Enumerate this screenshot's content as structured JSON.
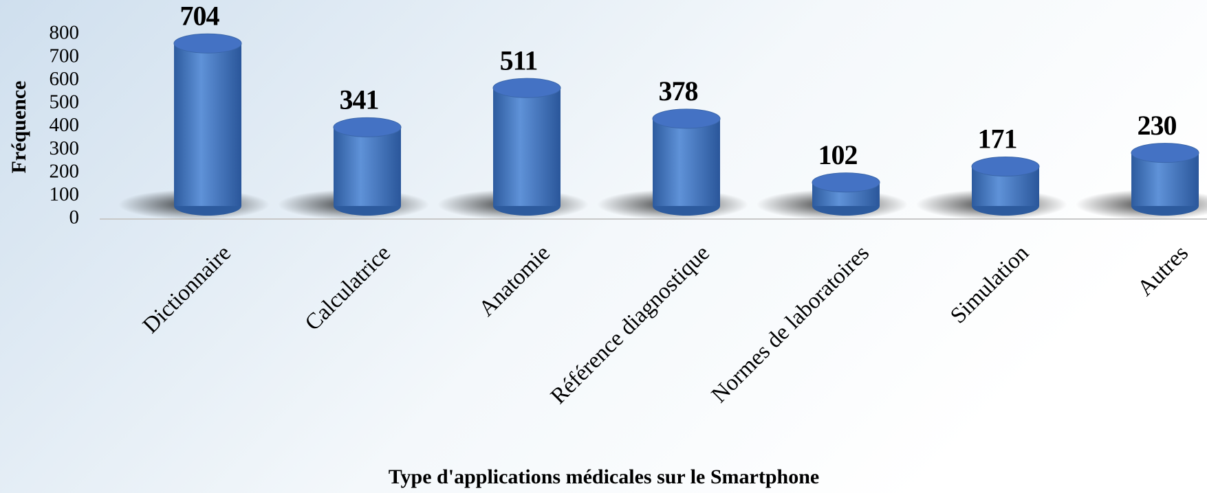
{
  "chart_data": {
    "type": "bar",
    "categories": [
      "Dictionnaire",
      "Calculatrice",
      "Anatomie",
      "Référence diagnostique",
      "Normes de laboratoires",
      "Simulation",
      "Autres"
    ],
    "values": [
      704,
      341,
      511,
      378,
      102,
      171,
      230
    ],
    "color": "#4472c4",
    "xlabel": "Type d'applications médicales sur le Smartphone",
    "ylabel": "Fréquence",
    "ylim": [
      0,
      800
    ],
    "yticks": [
      0,
      100,
      200,
      300,
      400,
      500,
      600,
      700,
      800
    ],
    "grid": false
  }
}
